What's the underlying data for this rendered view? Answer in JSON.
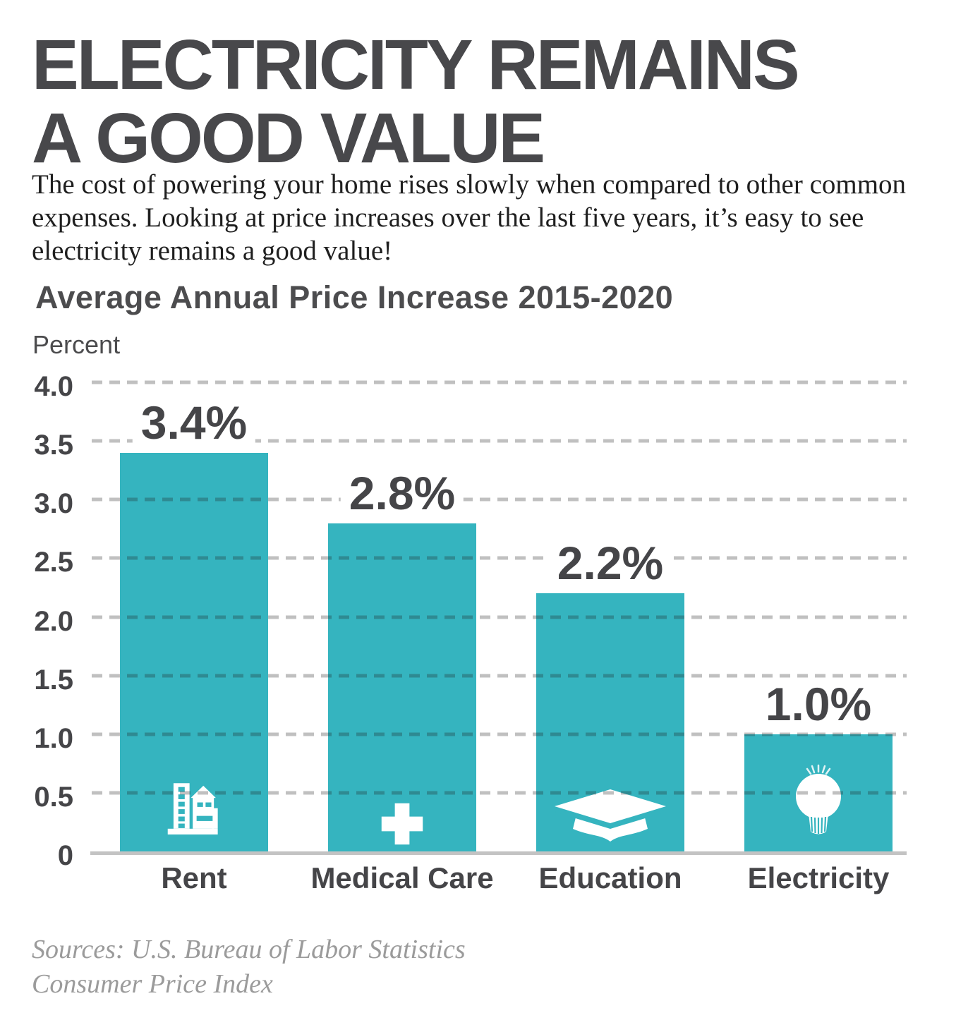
{
  "header": {
    "title_line1": "ELECTRICITY REMAINS",
    "title_line2": "A GOOD VALUE",
    "description": "The cost of powering your home rises slowly when compared to other common expenses. Looking at price increases over the last five years, it’s easy to see electricity remains a good value!"
  },
  "chart_data": {
    "type": "bar",
    "title": "Average Annual Price Increase 2015-2020",
    "ylabel": "Percent",
    "categories": [
      "Rent",
      "Medical Care",
      "Education",
      "Electricity"
    ],
    "values": [
      3.4,
      2.8,
      2.2,
      1.0
    ],
    "value_labels": [
      "3.4%",
      "2.8%",
      "2.2%",
      "1.0%"
    ],
    "icons": [
      "building-icon",
      "medical-cross-icon",
      "graduation-cap-icon",
      "lightbulb-icon"
    ],
    "ylim": [
      0,
      4.0
    ],
    "yticks": [
      4.0,
      3.5,
      3.0,
      2.5,
      2.0,
      1.5,
      1.0,
      0.5,
      0
    ],
    "ytick_labels": [
      "4.0",
      "3.5",
      "3.0",
      "2.5",
      "2.0",
      "1.5",
      "1.0",
      "0.5",
      "0"
    ],
    "grid": "dashed horizontal gridlines, solid baseline, no legend",
    "bar_color": "#35b4bf",
    "label_color": "#454548",
    "gridline_color": "#c6c6c6"
  },
  "footer": {
    "source_line1": "Sources: U.S. Bureau of Labor Statistics",
    "source_line2": "Consumer Price Index"
  }
}
